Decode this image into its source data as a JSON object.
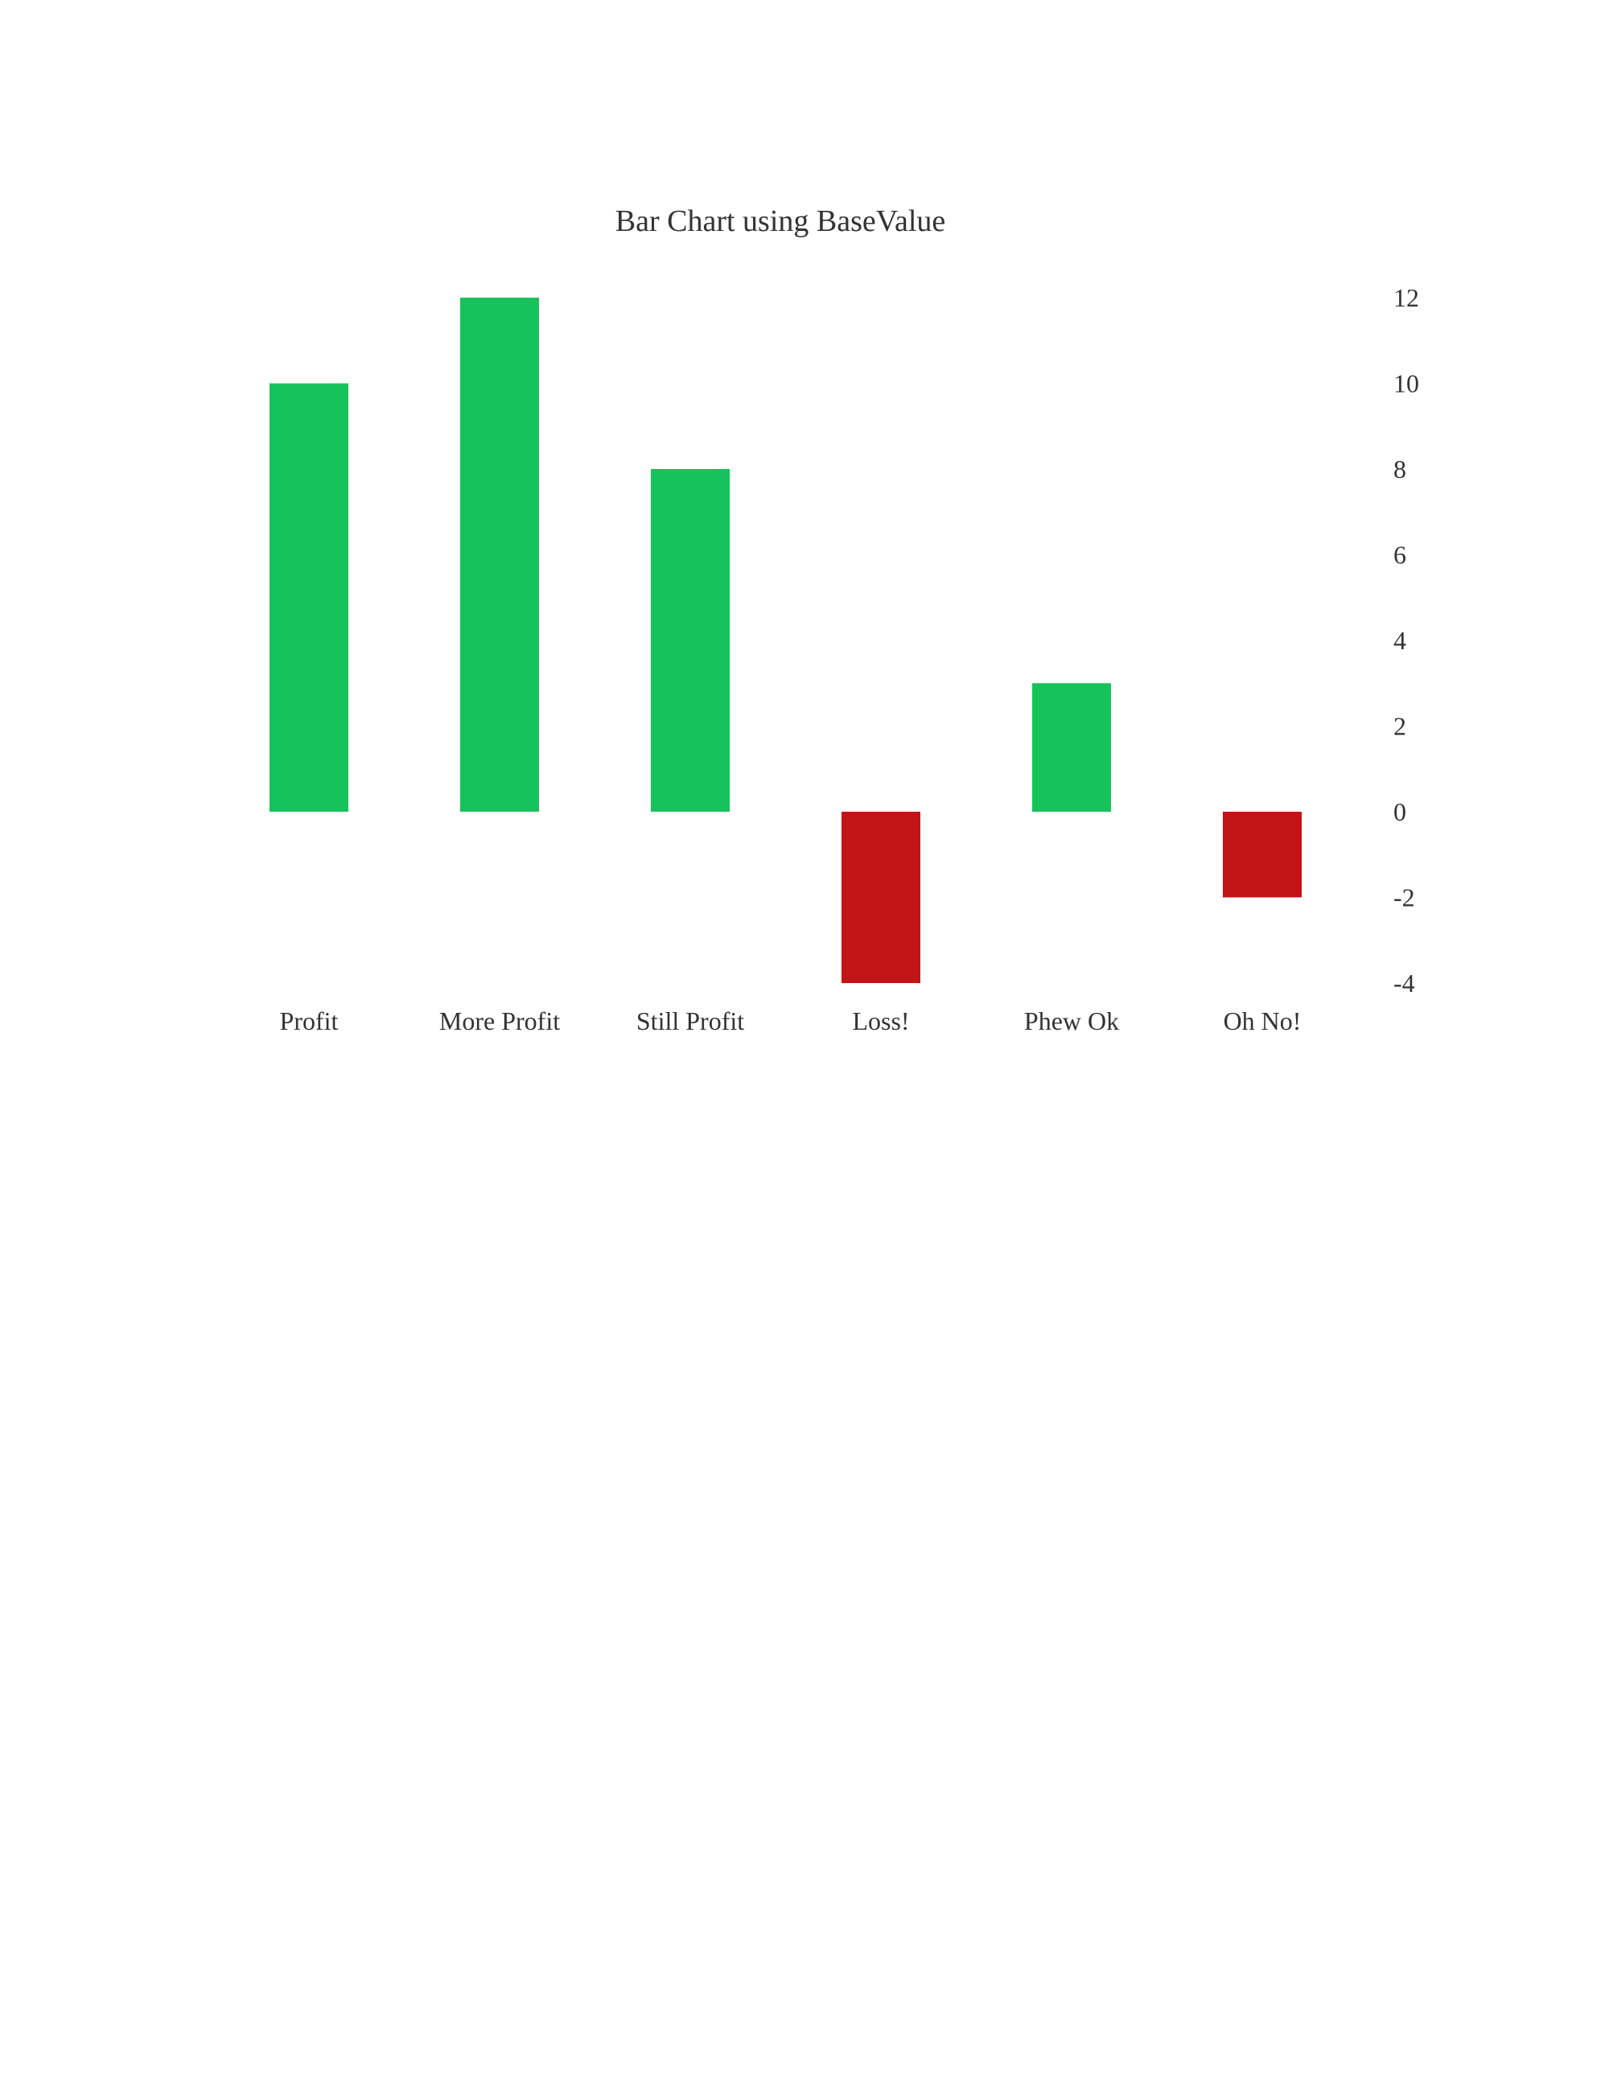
{
  "chart_data": {
    "type": "bar",
    "title": "Bar Chart using BaseValue",
    "categories": [
      "Profit",
      "More Profit",
      "Still Profit",
      "Loss!",
      "Phew Ok",
      "Oh No!"
    ],
    "values": [
      10,
      12,
      8,
      -4,
      3,
      -2
    ],
    "base_value": 0,
    "ylim": [
      -4,
      12
    ],
    "yticks": [
      12,
      10,
      8,
      6,
      4,
      2,
      0,
      -2,
      -4
    ],
    "y_axis_side": "right",
    "grid": false,
    "legend": "none",
    "colors": {
      "positive": "#16c25a",
      "negative": "#c21417",
      "text": "#333333"
    }
  }
}
